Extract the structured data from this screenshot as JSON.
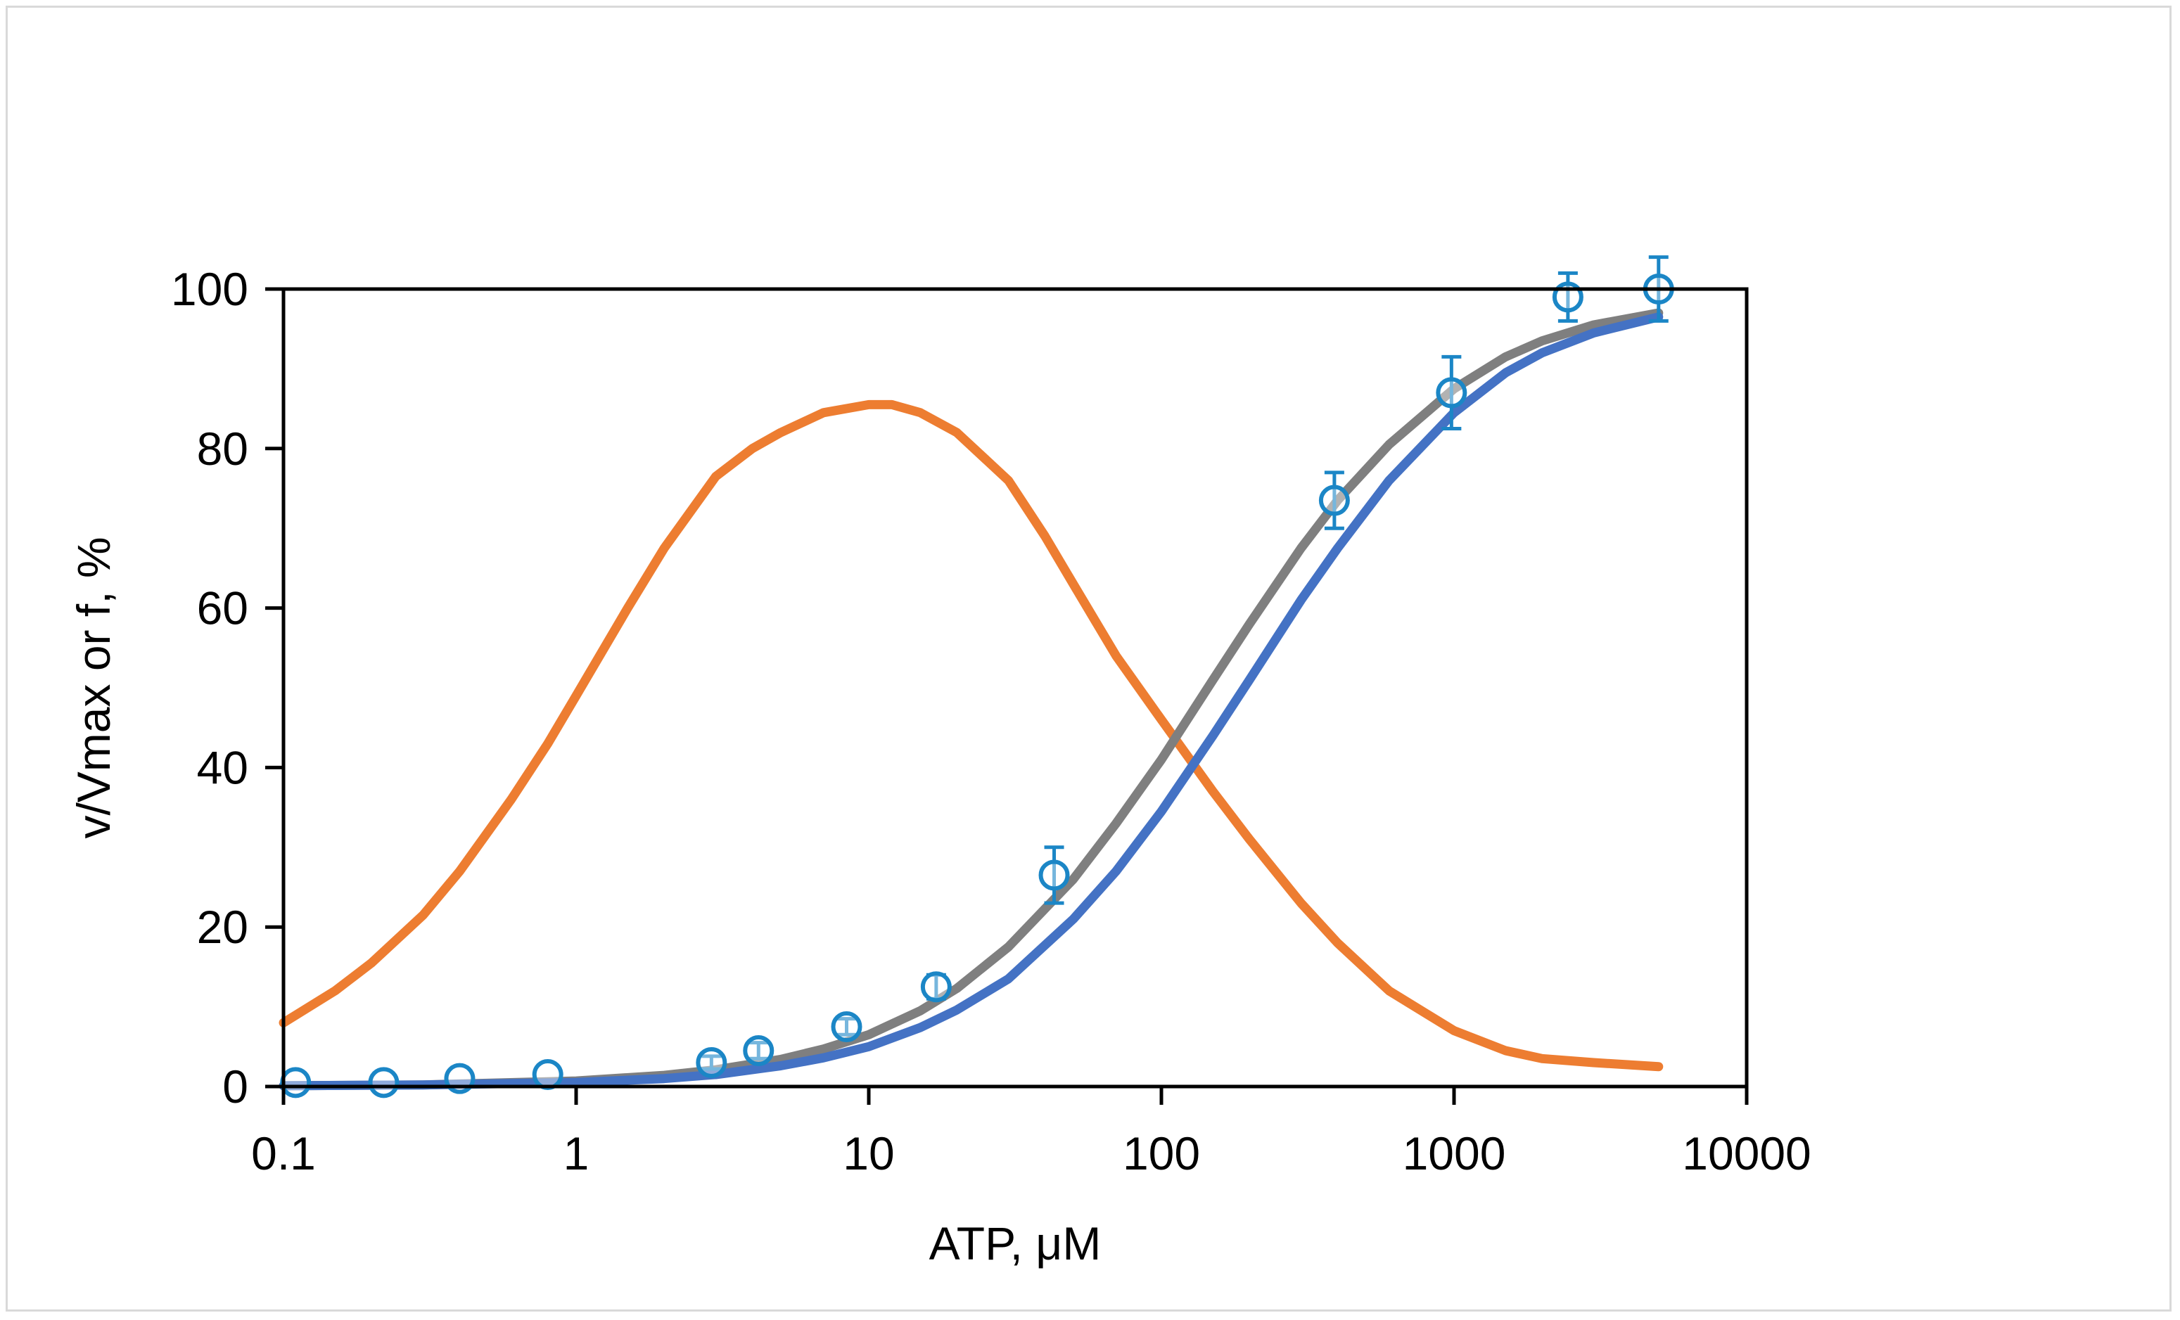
{
  "chart_data": {
    "type": "line",
    "title": "",
    "xlabel": "ATP, μM",
    "ylabel": "v/Vmax or f, %",
    "xscale": "log",
    "xlim": [
      0.1,
      10000
    ],
    "ylim": [
      0,
      100
    ],
    "x_ticks": [
      0.1,
      1,
      10,
      100,
      1000,
      10000
    ],
    "x_tick_labels": [
      "0.1",
      "1",
      "10",
      "100",
      "1000",
      "10000"
    ],
    "y_ticks": [
      0,
      20,
      40,
      60,
      80,
      100
    ],
    "y_tick_labels": [
      "0",
      "20",
      "40",
      "60",
      "80",
      "100"
    ],
    "grid": false,
    "legend": "none",
    "series": [
      {
        "name": "f (orange curve)",
        "kind": "line",
        "color": "#ED7D31",
        "x": [
          0.1,
          0.15,
          0.2,
          0.3,
          0.4,
          0.6,
          0.8,
          1,
          1.5,
          2,
          3,
          4,
          5,
          7,
          10,
          12,
          15,
          20,
          30,
          40,
          50,
          70,
          100,
          150,
          200,
          300,
          400,
          600,
          1000,
          1500,
          2000,
          3000,
          5000
        ],
        "y": [
          8.0,
          12.0,
          15.5,
          21.5,
          27.0,
          36.0,
          43.0,
          49.0,
          60.0,
          67.5,
          76.5,
          80.0,
          82.0,
          84.5,
          85.5,
          85.5,
          84.5,
          82.0,
          76.0,
          69.0,
          63.0,
          54.0,
          46.0,
          37.0,
          31.0,
          23.0,
          18.0,
          12.0,
          7.0,
          4.5,
          3.5,
          3.0,
          2.5
        ]
      },
      {
        "name": "fit (gray curve)",
        "kind": "line",
        "color": "#7F7F7F",
        "x": [
          0.1,
          0.3,
          1,
          2,
          3,
          5,
          7,
          10,
          15,
          20,
          30,
          50,
          70,
          100,
          150,
          200,
          300,
          400,
          600,
          1000,
          1500,
          2000,
          3000,
          5000
        ],
        "y": [
          0.1,
          0.2,
          0.7,
          1.4,
          2.1,
          3.4,
          4.7,
          6.5,
          9.5,
          12.3,
          17.5,
          26.0,
          33.0,
          41.0,
          51.0,
          58.0,
          67.5,
          73.5,
          80.5,
          87.5,
          91.5,
          93.5,
          95.5,
          97.0
        ]
      },
      {
        "name": "fit (blue curve)",
        "kind": "line",
        "color": "#4472C4",
        "x": [
          0.1,
          0.3,
          1,
          2,
          3,
          5,
          7,
          10,
          15,
          20,
          30,
          50,
          70,
          100,
          150,
          200,
          300,
          400,
          600,
          1000,
          1500,
          2000,
          3000,
          5000
        ],
        "y": [
          0.1,
          0.2,
          0.5,
          1.0,
          1.5,
          2.6,
          3.6,
          5.0,
          7.4,
          9.6,
          13.5,
          21.0,
          27.0,
          34.5,
          44.0,
          51.0,
          61.0,
          67.5,
          76.0,
          84.5,
          89.5,
          92.0,
          94.5,
          96.5
        ]
      },
      {
        "name": "data (open circles)",
        "kind": "scatter",
        "color": "#1B86C6",
        "x": [
          0.11,
          0.22,
          0.4,
          0.8,
          2.9,
          4.2,
          8.4,
          17,
          43,
          390,
          980,
          2450,
          5000
        ],
        "y": [
          0.5,
          0.5,
          1.0,
          1.5,
          3.0,
          4.5,
          7.5,
          12.5,
          26.5,
          73.5,
          87.0,
          99.0,
          100.0
        ],
        "error": [
          0.5,
          0.5,
          0.5,
          0.5,
          0.8,
          1.0,
          1.0,
          1.5,
          3.5,
          3.5,
          4.5,
          3.0,
          4.0
        ]
      }
    ]
  }
}
